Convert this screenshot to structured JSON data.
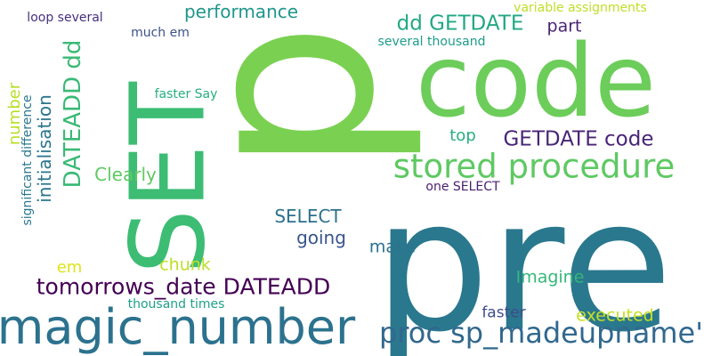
{
  "words": [
    {
      "text": "p",
      "color": "#7ad151"
    },
    {
      "text": "pre",
      "color": "#2a788e"
    },
    {
      "text": "code",
      "color": "#6ccd5a"
    },
    {
      "text": "SET",
      "color": "#3dbc74"
    },
    {
      "text": "magic_number",
      "color": "#2c728e"
    },
    {
      "text": "stored procedure",
      "color": "#5ec962"
    },
    {
      "text": "proc sp_madeupname'",
      "color": "#31688e"
    },
    {
      "text": "tomorrows_date DATEADD",
      "color": "#440154"
    },
    {
      "text": "GETDATE code",
      "color": "#482576"
    },
    {
      "text": "dd GETDATE",
      "color": "#22a884"
    },
    {
      "text": "DATEADD dd",
      "color": "#3aba76"
    },
    {
      "text": "initialisation",
      "color": "#2b758e"
    },
    {
      "text": "performance",
      "color": "#1f968b"
    },
    {
      "text": "Clearly",
      "color": "#5ec962"
    },
    {
      "text": "SELECT",
      "color": "#2c718e"
    },
    {
      "text": "going",
      "color": "#39558c"
    },
    {
      "text": "make",
      "color": "#2c738e"
    },
    {
      "text": "chunk",
      "color": "#bddf26"
    },
    {
      "text": "Imagine",
      "color": "#35b779"
    },
    {
      "text": "faster",
      "color": "#3e4c8a"
    },
    {
      "text": "executed",
      "color": "#c5e021"
    },
    {
      "text": "part",
      "color": "#482475"
    },
    {
      "text": "top",
      "color": "#29af7f"
    },
    {
      "text": "number",
      "color": "#b8de29"
    },
    {
      "text": "em",
      "color": "#dde318"
    },
    {
      "text": "loop several",
      "color": "#46307e"
    },
    {
      "text": "much em",
      "color": "#3b528b"
    },
    {
      "text": "faster Say",
      "color": "#27ad81"
    },
    {
      "text": "several thousand",
      "color": "#1e9c89"
    },
    {
      "text": "variable assignments",
      "color": "#c0df25"
    },
    {
      "text": "one SELECT",
      "color": "#481f70"
    },
    {
      "text": "thousand times",
      "color": "#1fa088"
    },
    {
      "text": "significant difference",
      "color": "#2a778e"
    }
  ]
}
